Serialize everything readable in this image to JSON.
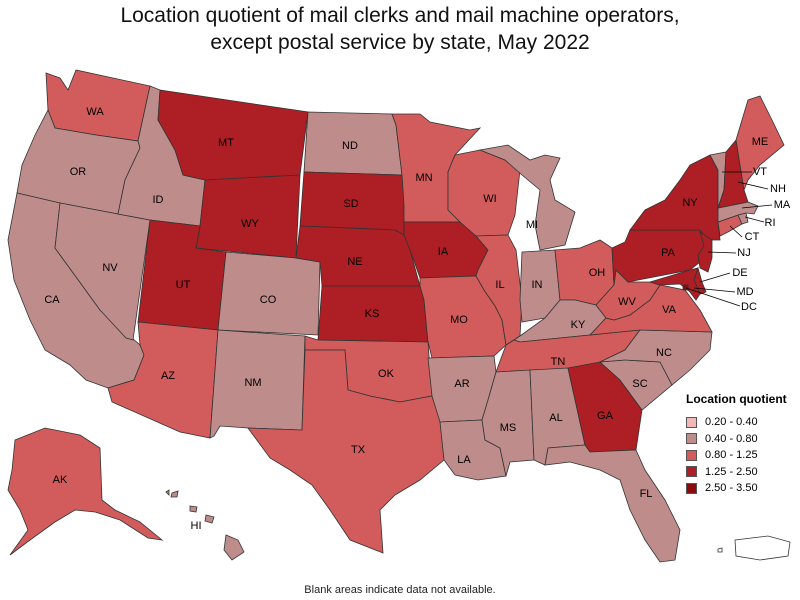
{
  "title_line1": "Location quotient of mail clerks and mail machine operators,",
  "title_line2": "except postal service by state, May 2022",
  "footer": "Blank areas indicate data not available.",
  "legend": {
    "title": "Location quotient",
    "items": [
      {
        "label": "0.20 - 0.40",
        "color": "#f2b8b8"
      },
      {
        "label": "0.40 - 0.80",
        "color": "#bf8c8c"
      },
      {
        "label": "0.80 - 1.25",
        "color": "#d25c5c"
      },
      {
        "label": "1.25 - 2.50",
        "color": "#ad1f24"
      },
      {
        "label": "2.50 - 3.50",
        "color": "#8a0a0e"
      }
    ]
  },
  "states": {
    "WA": {
      "label": "WA",
      "bin": "0.80 - 1.25"
    },
    "OR": {
      "label": "OR",
      "bin": "0.40 - 0.80"
    },
    "CA": {
      "label": "CA",
      "bin": "0.40 - 0.80"
    },
    "NV": {
      "label": "NV",
      "bin": "0.40 - 0.80"
    },
    "ID": {
      "label": "ID",
      "bin": "0.40 - 0.80"
    },
    "MT": {
      "label": "MT",
      "bin": "1.25 - 2.50"
    },
    "WY": {
      "label": "WY",
      "bin": "1.25 - 2.50"
    },
    "UT": {
      "label": "UT",
      "bin": "1.25 - 2.50"
    },
    "AZ": {
      "label": "AZ",
      "bin": "0.80 - 1.25"
    },
    "CO": {
      "label": "CO",
      "bin": "0.40 - 0.80"
    },
    "NM": {
      "label": "NM",
      "bin": "0.40 - 0.80"
    },
    "ND": {
      "label": "ND",
      "bin": "0.40 - 0.80"
    },
    "SD": {
      "label": "SD",
      "bin": "1.25 - 2.50"
    },
    "NE": {
      "label": "NE",
      "bin": "1.25 - 2.50"
    },
    "KS": {
      "label": "KS",
      "bin": "1.25 - 2.50"
    },
    "OK": {
      "label": "OK",
      "bin": "0.80 - 1.25"
    },
    "TX": {
      "label": "TX",
      "bin": "0.80 - 1.25"
    },
    "MN": {
      "label": "MN",
      "bin": "0.80 - 1.25"
    },
    "IA": {
      "label": "IA",
      "bin": "1.25 - 2.50"
    },
    "MO": {
      "label": "MO",
      "bin": "0.80 - 1.25"
    },
    "AR": {
      "label": "AR",
      "bin": "0.40 - 0.80"
    },
    "LA": {
      "label": "LA",
      "bin": "0.40 - 0.80"
    },
    "WI": {
      "label": "WI",
      "bin": "0.80 - 1.25"
    },
    "IL": {
      "label": "IL",
      "bin": "0.80 - 1.25"
    },
    "MI": {
      "label": "MI",
      "bin": "0.40 - 0.80"
    },
    "IN": {
      "label": "IN",
      "bin": "0.40 - 0.80"
    },
    "OH": {
      "label": "OH",
      "bin": "0.80 - 1.25"
    },
    "KY": {
      "label": "KY",
      "bin": "0.40 - 0.80"
    },
    "TN": {
      "label": "TN",
      "bin": "0.80 - 1.25"
    },
    "MS": {
      "label": "MS",
      "bin": "0.40 - 0.80"
    },
    "AL": {
      "label": "AL",
      "bin": "0.40 - 0.80"
    },
    "GA": {
      "label": "GA",
      "bin": "1.25 - 2.50"
    },
    "FL": {
      "label": "FL",
      "bin": "0.40 - 0.80"
    },
    "SC": {
      "label": "SC",
      "bin": "0.40 - 0.80"
    },
    "NC": {
      "label": "NC",
      "bin": "0.40 - 0.80"
    },
    "VA": {
      "label": "VA",
      "bin": "0.80 - 1.25"
    },
    "WV": {
      "label": "WV",
      "bin": "0.80 - 1.25"
    },
    "PA": {
      "label": "PA",
      "bin": "1.25 - 2.50"
    },
    "NY": {
      "label": "NY",
      "bin": "1.25 - 2.50"
    },
    "NJ": {
      "label": "NJ",
      "bin": "1.25 - 2.50"
    },
    "DE": {
      "label": "DE",
      "bin": "1.25 - 2.50"
    },
    "MD": {
      "label": "MD",
      "bin": "1.25 - 2.50"
    },
    "DC": {
      "label": "DC",
      "bin": "2.50 - 3.50"
    },
    "CT": {
      "label": "CT",
      "bin": "0.80 - 1.25"
    },
    "RI": {
      "label": "RI",
      "bin": "0.40 - 0.80"
    },
    "MA": {
      "label": "MA",
      "bin": "0.40 - 0.80"
    },
    "VT": {
      "label": "VT",
      "bin": "0.40 - 0.80"
    },
    "NH": {
      "label": "NH",
      "bin": "1.25 - 2.50"
    },
    "ME": {
      "label": "ME",
      "bin": "0.80 - 1.25"
    },
    "AK": {
      "label": "AK",
      "bin": "0.80 - 1.25"
    },
    "HI": {
      "label": "HI",
      "bin": "0.40 - 0.80"
    },
    "PR": {
      "label": "",
      "bin": ""
    }
  }
}
